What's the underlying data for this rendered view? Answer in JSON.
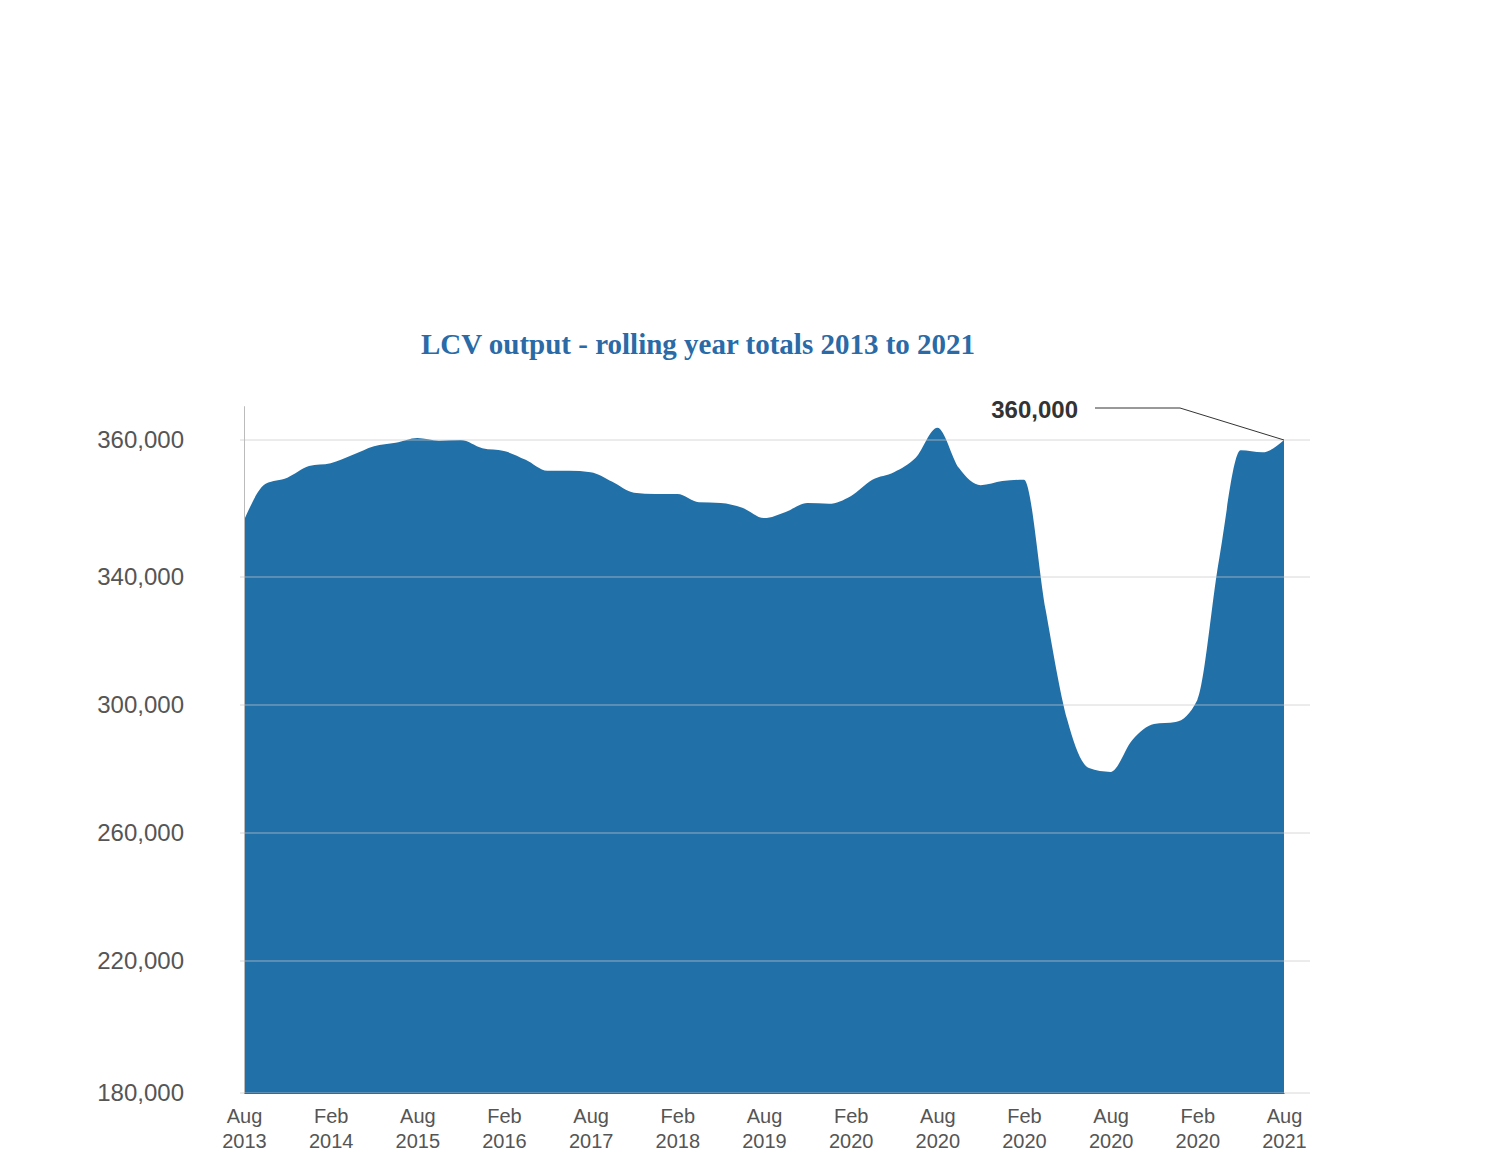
{
  "chart_data": {
    "type": "area",
    "title": "LCV output - rolling year totals 2013 to 2021",
    "categories": [
      "Aug 2013",
      null,
      null,
      null,
      "Feb 2014",
      null,
      null,
      null,
      "Aug 2015",
      null,
      null,
      null,
      "Feb 2016",
      null,
      null,
      null,
      "Aug 2017",
      null,
      null,
      null,
      "Feb 2018",
      null,
      null,
      null,
      "Aug 2019",
      null,
      null,
      null,
      "Feb 2020",
      null,
      null,
      null,
      "Aug 2020",
      null,
      null,
      null,
      "Feb 2020",
      null,
      null,
      null,
      "Aug 2020",
      null,
      null,
      null,
      "Feb 2020",
      null,
      null,
      null,
      "Aug 2021"
    ],
    "values": [
      348300,
      353600,
      354500,
      356200,
      356600,
      357800,
      359100,
      359600,
      360300,
      359900,
      360000,
      358800,
      358400,
      357100,
      355500,
      355500,
      355300,
      353900,
      352300,
      352100,
      352100,
      350900,
      350800,
      350100,
      348600,
      349500,
      350800,
      350700,
      351800,
      354200,
      355300,
      357400,
      361800,
      355900,
      353400,
      354000,
      354200,
      329700,
      295300,
      280300,
      279100,
      289100,
      294100,
      294700,
      301600,
      342500,
      358500,
      358200,
      360000
    ],
    "color": "#2270a8",
    "ylim": [
      180000,
      365000
    ],
    "yticks": [
      {
        "value": 180000,
        "label": "180,000"
      },
      {
        "value": 220000,
        "label": "220,000"
      },
      {
        "value": 260000,
        "label": "260,000"
      },
      {
        "value": 300000,
        "label": "300,000"
      },
      {
        "value": 340000,
        "label": "340,000"
      },
      {
        "value": 360000,
        "label": "360,000"
      }
    ],
    "grid": true,
    "annotations": [
      {
        "text": "360,000",
        "value": 360000
      }
    ]
  }
}
